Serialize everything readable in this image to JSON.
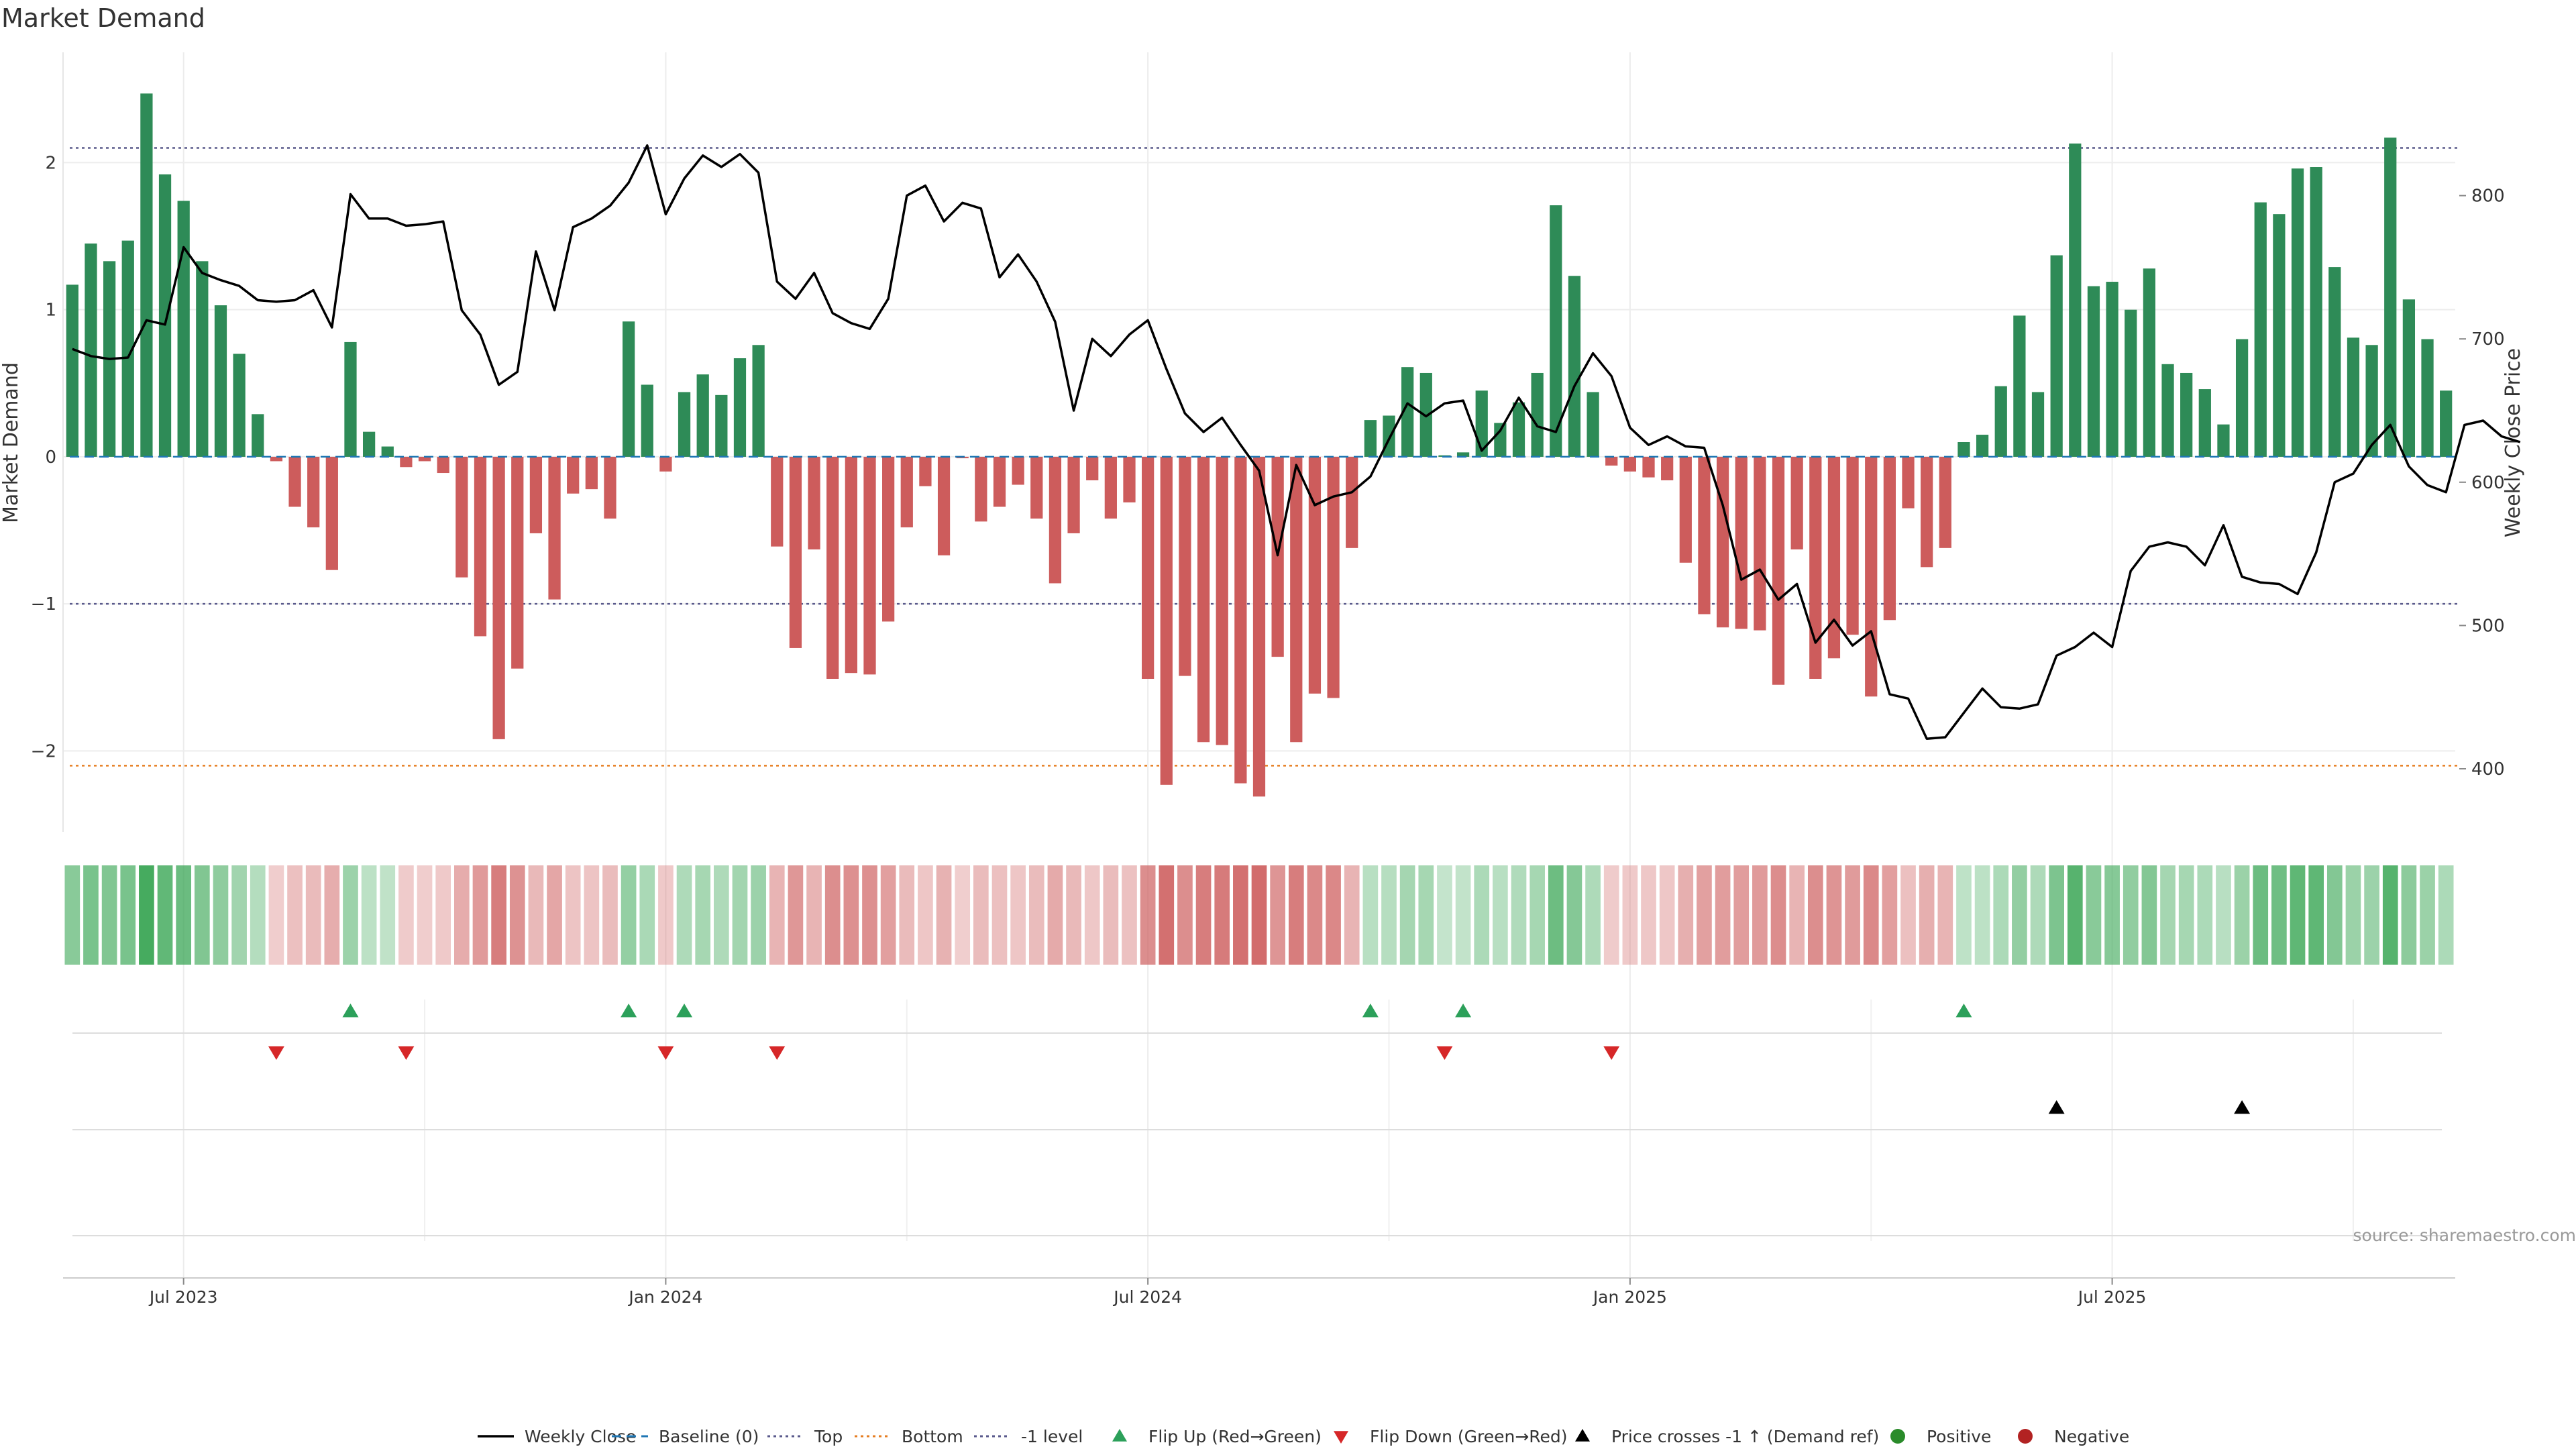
{
  "chart_data": {
    "type": "bar",
    "title": "Market Demand",
    "ylabel": "Market Demand",
    "y2label": "Weekly Close Price",
    "ylim": [
      -2.55,
      2.75
    ],
    "y2lim": [
      356,
      900
    ],
    "y_ticks": [
      -2,
      -1,
      0,
      1,
      2
    ],
    "y2_ticks": [
      400,
      500,
      600,
      700,
      800
    ],
    "x_ticks": [
      {
        "i": 6,
        "label": "Jul 2023"
      },
      {
        "i": 32,
        "label": "Jan 2024"
      },
      {
        "i": 58,
        "label": "Jul 2024"
      },
      {
        "i": 84,
        "label": "Jan 2025"
      },
      {
        "i": 110,
        "label": "Jul 2025"
      }
    ],
    "x_minor_ticks": [
      19,
      45,
      71,
      97,
      123
    ],
    "reference_lines": {
      "top": 2.1,
      "bottom": -2.1,
      "minus_one": -1,
      "baseline": 0
    },
    "demand": [
      1.17,
      1.45,
      1.33,
      1.47,
      2.47,
      1.92,
      1.74,
      1.33,
      1.03,
      0.7,
      0.29,
      -0.03,
      -0.34,
      -0.48,
      -0.77,
      0.78,
      0.17,
      0.07,
      -0.07,
      -0.03,
      -0.11,
      -0.82,
      -1.22,
      -1.92,
      -1.44,
      -0.52,
      -0.97,
      -0.25,
      -0.22,
      -0.42,
      0.92,
      0.49,
      -0.1,
      0.44,
      0.56,
      0.42,
      0.67,
      0.76,
      -0.61,
      -1.3,
      -0.63,
      -1.51,
      -1.47,
      -1.48,
      -1.12,
      -0.48,
      -0.2,
      -0.67,
      -0.01,
      -0.44,
      -0.34,
      -0.19,
      -0.42,
      -0.86,
      -0.52,
      -0.16,
      -0.42,
      -0.31,
      -1.51,
      -2.23,
      -1.49,
      -1.94,
      -1.96,
      -2.22,
      -2.31,
      -1.36,
      -1.94,
      -1.61,
      -1.64,
      -0.62,
      0.25,
      0.28,
      0.61,
      0.57,
      0.01,
      0.03,
      0.45,
      0.23,
      0.37,
      0.57,
      1.71,
      1.23,
      0.44,
      -0.06,
      -0.1,
      -0.14,
      -0.16,
      -0.72,
      -1.07,
      -1.16,
      -1.17,
      -1.18,
      -1.55,
      -0.63,
      -1.51,
      -1.37,
      -1.21,
      -1.63,
      -1.11,
      -0.35,
      -0.75,
      -0.62,
      0.1,
      0.15,
      0.48,
      0.96,
      0.44,
      1.37,
      2.13,
      1.16,
      1.19,
      1.0,
      1.28,
      0.63,
      0.57,
      0.46,
      0.22,
      0.8,
      1.73,
      1.65,
      1.96,
      1.97,
      1.29,
      0.81,
      0.76,
      2.17,
      1.07,
      0.8,
      0.45
    ],
    "price": [
      693,
      688,
      686,
      687,
      713,
      710,
      764,
      746,
      741,
      737,
      727,
      726,
      727,
      734,
      708,
      801,
      784,
      784,
      779,
      780,
      782,
      720,
      703,
      668,
      677,
      761,
      720,
      778,
      784,
      793,
      809,
      835,
      787,
      812,
      828,
      820,
      829,
      816,
      740,
      728,
      746,
      718,
      711,
      707,
      728,
      800,
      807,
      782,
      795,
      791,
      743,
      759,
      740,
      712,
      650,
      700,
      688,
      703,
      713,
      679,
      648,
      635,
      645,
      626,
      608,
      549,
      612,
      584,
      590,
      593,
      604,
      630,
      655,
      646,
      655,
      657,
      622,
      636,
      659,
      639,
      635,
      667,
      690,
      674,
      638,
      626,
      632,
      625,
      624,
      584,
      532,
      539,
      518,
      529,
      488,
      504,
      486,
      496,
      452,
      449,
      421,
      422,
      439,
      456,
      443,
      442,
      445,
      479,
      485,
      495,
      485,
      538,
      555,
      558,
      555,
      542,
      570,
      534,
      530,
      529,
      522,
      551,
      600,
      606,
      626,
      640,
      611,
      598,
      593,
      640,
      643,
      632,
      628
    ],
    "flip_up": [
      15,
      30,
      33,
      70,
      75,
      102
    ],
    "flip_down": [
      11,
      18,
      32,
      38,
      74,
      83
    ],
    "price_cross": [
      107,
      117
    ],
    "source": "source: sharemaestro.com",
    "legend": [
      {
        "label": "Weekly Close",
        "kind": "line",
        "color": "#000000"
      },
      {
        "label": "Baseline (0)",
        "kind": "dash",
        "color": "#1f77b4"
      },
      {
        "label": "Top",
        "kind": "dot",
        "color": "#5a5a8c"
      },
      {
        "label": "Bottom",
        "kind": "dot",
        "color": "#e67e22"
      },
      {
        "label": "-1 level",
        "kind": "dot",
        "color": "#5a5a8c"
      },
      {
        "label": "Flip Up (Red→Green)",
        "kind": "tri-up",
        "color": "#2ca05a"
      },
      {
        "label": "Flip Down (Green→Red)",
        "kind": "tri-down",
        "color": "#d62728"
      },
      {
        "label": "Price crosses -1 ↑ (Demand ref)",
        "kind": "tri-up",
        "color": "#000000"
      },
      {
        "label": "Positive",
        "kind": "circle",
        "color": "#2a8b2a"
      },
      {
        "label": "Negative",
        "kind": "circle",
        "color": "#b22222"
      }
    ],
    "colors": {
      "positive_bar": "#2e8b57",
      "negative_bar": "#cd5c5c",
      "heat_positive": "#3aa655",
      "heat_negative": "#cd5c5c"
    }
  }
}
